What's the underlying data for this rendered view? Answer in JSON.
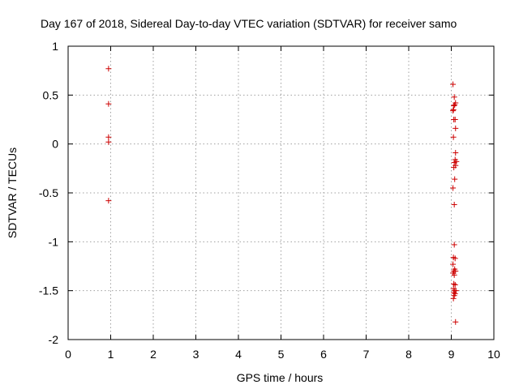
{
  "chart_data": {
    "type": "scatter",
    "title": "Day 167 of 2018, Sidereal Day-to-day VTEC variation (SDTVAR) for receiver samo",
    "xlabel": "GPS time / hours",
    "ylabel": "SDTVAR / TECUs",
    "xlim": [
      0,
      10
    ],
    "ylim": [
      -2,
      1
    ],
    "xticks": [
      0,
      1,
      2,
      3,
      4,
      5,
      6,
      7,
      8,
      9,
      10
    ],
    "xtick_labels": [
      "0",
      "1",
      "2",
      "3",
      "4",
      "5",
      "6",
      "7",
      "8",
      "9",
      "10"
    ],
    "yticks": [
      -2,
      -1.5,
      -1,
      -0.5,
      0,
      0.5,
      1
    ],
    "ytick_labels": [
      "-2",
      "-1.5",
      "-1",
      "-0.5",
      "0",
      "0.5",
      "1"
    ],
    "grid": true,
    "marker": "plus",
    "color": "#cc0000",
    "series": [
      {
        "name": "SDTVAR",
        "points": [
          [
            0.95,
            0.77
          ],
          [
            0.95,
            0.41
          ],
          [
            0.95,
            0.07
          ],
          [
            0.95,
            0.02
          ],
          [
            0.95,
            -0.58
          ],
          [
            9.04,
            0.61
          ],
          [
            9.07,
            0.48
          ],
          [
            9.1,
            0.42
          ],
          [
            9.08,
            0.4
          ],
          [
            9.06,
            0.39
          ],
          [
            9.05,
            0.35
          ],
          [
            9.04,
            0.34
          ],
          [
            9.06,
            0.25
          ],
          [
            9.09,
            0.25
          ],
          [
            9.1,
            0.16
          ],
          [
            9.05,
            0.07
          ],
          [
            9.1,
            -0.09
          ],
          [
            9.09,
            -0.16
          ],
          [
            9.12,
            -0.18
          ],
          [
            9.07,
            -0.19
          ],
          [
            9.1,
            -0.22
          ],
          [
            9.06,
            -0.24
          ],
          [
            9.08,
            -0.36
          ],
          [
            9.04,
            -0.45
          ],
          [
            9.07,
            -0.62
          ],
          [
            9.07,
            -1.03
          ],
          [
            9.05,
            -1.16
          ],
          [
            9.09,
            -1.17
          ],
          [
            9.04,
            -1.23
          ],
          [
            9.08,
            -1.28
          ],
          [
            9.06,
            -1.3
          ],
          [
            9.1,
            -1.3
          ],
          [
            9.04,
            -1.32
          ],
          [
            9.07,
            -1.34
          ],
          [
            9.06,
            -1.43
          ],
          [
            9.09,
            -1.44
          ],
          [
            9.05,
            -1.48
          ],
          [
            9.08,
            -1.5
          ],
          [
            9.11,
            -1.5
          ],
          [
            9.06,
            -1.52
          ],
          [
            9.09,
            -1.53
          ],
          [
            9.07,
            -1.55
          ],
          [
            9.05,
            -1.58
          ],
          [
            9.1,
            -1.82
          ]
        ]
      }
    ]
  }
}
